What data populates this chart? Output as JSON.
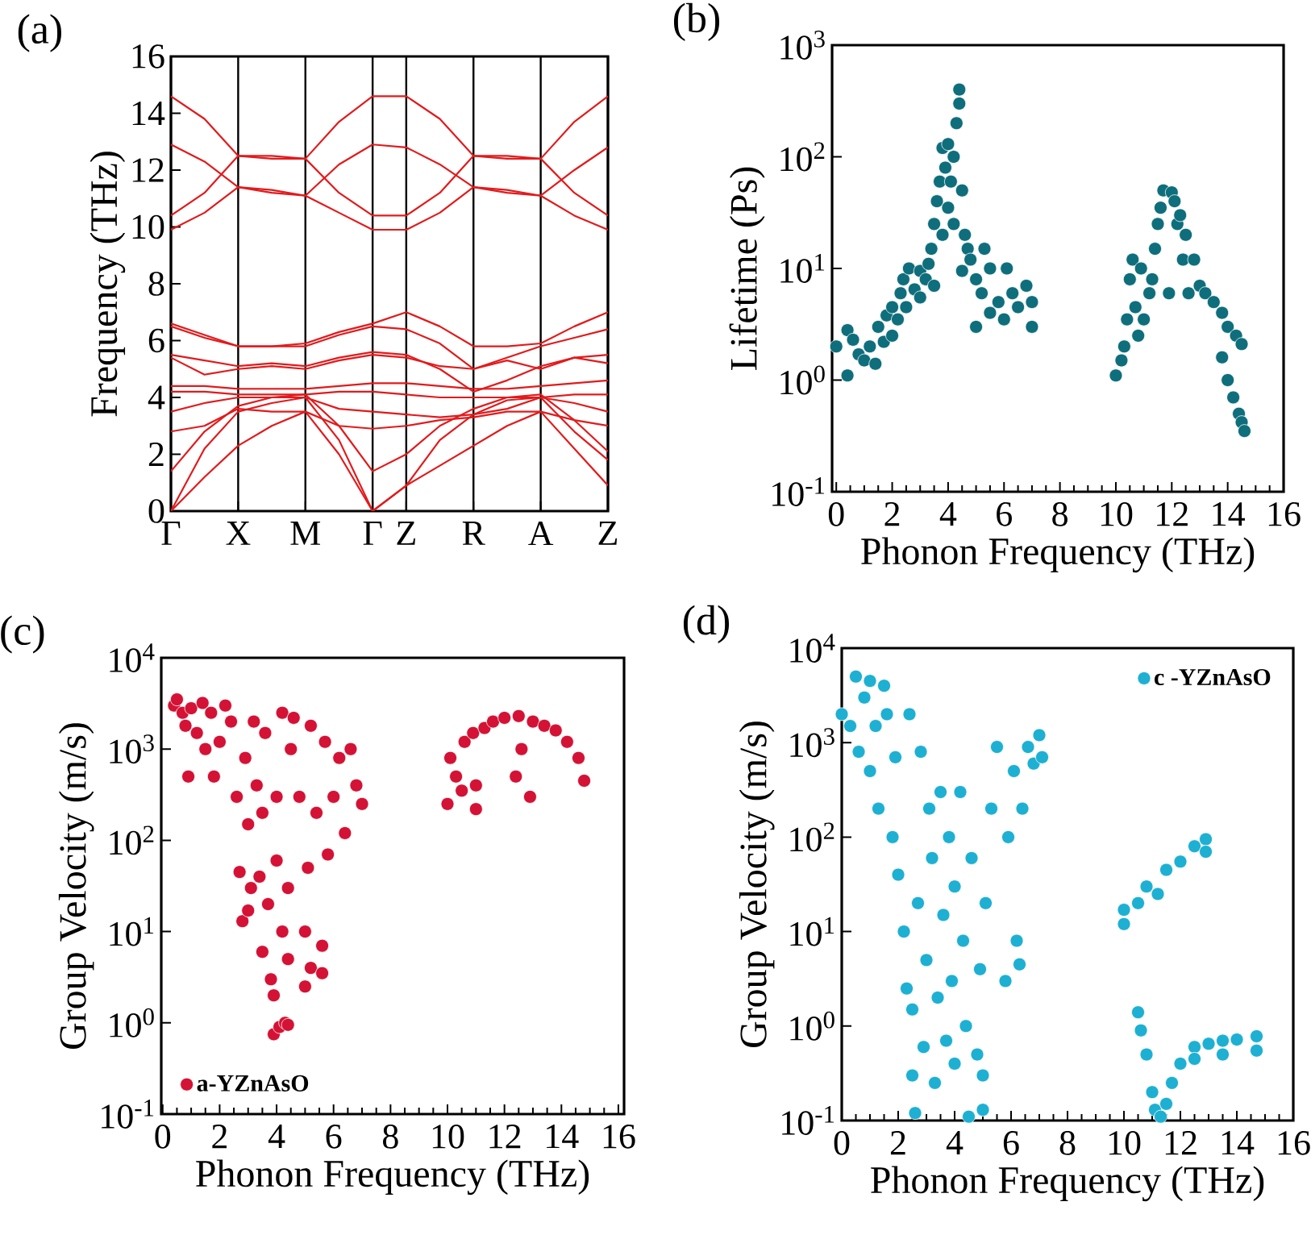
{
  "chart_data": [
    {
      "type": "line",
      "title": "(a)",
      "ylabel": "Frequency (THz)",
      "categories": [
        "Γ",
        null,
        "X",
        null,
        "M",
        null,
        "Γ",
        "Z",
        null,
        "R",
        null,
        "A",
        null,
        "Z"
      ],
      "ylim": [
        0,
        16
      ],
      "yticks": [
        0,
        2,
        4,
        6,
        8,
        10,
        12,
        14,
        16
      ],
      "grid": "x",
      "series": [
        {
          "color": "#e31a1c",
          "values": [
            14.6,
            13.8,
            12.5,
            12.5,
            12.4,
            13.7,
            14.6,
            14.6,
            13.8,
            12.5,
            12.5,
            12.4,
            13.7,
            14.6
          ]
        },
        {
          "color": "#e31a1c",
          "values": [
            12.9,
            12.3,
            11.4,
            11.3,
            11.1,
            12.2,
            12.9,
            12.8,
            12.2,
            11.4,
            11.3,
            11.1,
            12.0,
            12.8
          ]
        },
        {
          "color": "#e31a1c",
          "values": [
            10.4,
            11.2,
            12.5,
            12.4,
            12.4,
            11.2,
            10.4,
            10.4,
            11.2,
            12.5,
            12.4,
            12.4,
            11.2,
            10.4
          ]
        },
        {
          "color": "#e31a1c",
          "values": [
            9.9,
            10.5,
            11.4,
            11.2,
            11.1,
            10.5,
            9.9,
            9.9,
            10.5,
            11.4,
            11.2,
            11.1,
            10.4,
            9.9
          ]
        },
        {
          "color": "#e31a1c",
          "values": [
            0,
            1.2,
            2.3,
            3.0,
            3.5,
            2.0,
            0,
            0.9,
            1.6,
            2.3,
            3.0,
            3.5,
            2.2,
            0.9
          ]
        },
        {
          "color": "#e31a1c",
          "values": [
            0,
            2.2,
            3.5,
            3.8,
            4.0,
            2.5,
            0,
            0.9,
            2.5,
            3.4,
            3.9,
            4.0,
            2.8,
            1.8
          ]
        },
        {
          "color": "#e31a1c",
          "values": [
            1.4,
            2.8,
            3.7,
            4.0,
            4.1,
            3.0,
            1.4,
            2.0,
            3.0,
            3.6,
            4.0,
            4.1,
            3.2,
            2.1
          ]
        },
        {
          "color": "#e31a1c",
          "values": [
            2.8,
            3.0,
            3.6,
            3.5,
            3.5,
            3.0,
            2.9,
            3.0,
            3.2,
            3.3,
            3.5,
            3.5,
            3.2,
            3.0
          ]
        },
        {
          "color": "#e31a1c",
          "values": [
            3.5,
            3.8,
            4.0,
            4.0,
            4.0,
            3.6,
            3.5,
            3.4,
            3.3,
            3.4,
            3.6,
            4.0,
            3.8,
            3.5
          ]
        },
        {
          "color": "#e31a1c",
          "values": [
            4.2,
            4.2,
            4.1,
            4.1,
            4.1,
            4.2,
            4.2,
            4.1,
            4.0,
            4.0,
            4.0,
            4.0,
            4.1,
            4.1
          ]
        },
        {
          "color": "#e31a1c",
          "values": [
            4.4,
            4.4,
            4.3,
            4.3,
            4.3,
            4.4,
            4.5,
            4.5,
            4.4,
            4.3,
            4.3,
            4.4,
            4.5,
            4.6
          ]
        },
        {
          "color": "#e31a1c",
          "values": [
            5.4,
            4.8,
            5.0,
            5.1,
            5.0,
            5.3,
            5.5,
            5.4,
            5.1,
            5.0,
            5.3,
            5.0,
            5.4,
            5.2
          ]
        },
        {
          "color": "#e31a1c",
          "values": [
            5.5,
            5.3,
            5.1,
            5.2,
            5.1,
            5.4,
            5.6,
            5.5,
            5.0,
            4.2,
            4.6,
            5.1,
            5.4,
            5.5
          ]
        },
        {
          "color": "#e31a1c",
          "values": [
            6.5,
            6.1,
            5.8,
            5.8,
            5.8,
            6.2,
            6.5,
            6.4,
            5.9,
            5.0,
            5.4,
            5.8,
            6.1,
            6.4
          ]
        },
        {
          "color": "#e31a1c",
          "values": [
            6.6,
            6.2,
            5.8,
            5.8,
            5.9,
            6.3,
            6.6,
            7.0,
            6.5,
            5.8,
            5.8,
            5.9,
            6.5,
            7.0
          ]
        }
      ]
    },
    {
      "type": "scatter",
      "title": "(b)",
      "xlabel": "Phonon Frequency (THz)",
      "ylabel": "Lifetime (Ps)",
      "log": "y",
      "marker": "circle",
      "color": "#0f6e7c",
      "xlim": [
        -0.15,
        16
      ],
      "ylim": [
        0.1,
        1000
      ],
      "xticks": [
        0,
        2,
        4,
        6,
        8,
        10,
        12,
        14,
        16
      ],
      "yticks": [
        {
          "value": 0.1,
          "label": "10$^{-1}$"
        },
        {
          "value": 1,
          "label": "10$^{0}$"
        },
        {
          "value": 10,
          "label": "10$^{1}$"
        },
        {
          "value": 100,
          "label": "10$^{2}$"
        },
        {
          "value": 1000,
          "label": "10$^{3}$"
        }
      ],
      "x": [
        0,
        0.4,
        0.4,
        0.6,
        0.8,
        1.0,
        1.2,
        1.4,
        1.5,
        1.7,
        1.8,
        2.0,
        2.0,
        2.2,
        2.3,
        2.4,
        2.5,
        2.6,
        2.8,
        3.0,
        3.0,
        3.2,
        3.3,
        3.4,
        3.5,
        3.5,
        3.6,
        3.7,
        3.8,
        3.8,
        3.9,
        4.0,
        4.0,
        4.1,
        4.2,
        4.2,
        4.3,
        4.4,
        4.4,
        4.5,
        4.5,
        4.6,
        4.7,
        4.8,
        5.0,
        5.0,
        5.2,
        5.3,
        5.5,
        5.5,
        5.8,
        6.0,
        6.1,
        6.3,
        6.5,
        6.8,
        7.0,
        7.0,
        10.0,
        10.2,
        10.3,
        10.4,
        10.5,
        10.6,
        10.7,
        10.8,
        10.9,
        11.0,
        11.2,
        11.3,
        11.4,
        11.5,
        11.6,
        11.7,
        11.9,
        12.0,
        12.1,
        12.2,
        12.3,
        12.4,
        12.5,
        12.6,
        12.8,
        13.0,
        13.2,
        13.5,
        13.8,
        14.0,
        14.3,
        14.5,
        13.8,
        14.0,
        14.2,
        14.4,
        14.5,
        14.6
      ],
      "values": [
        2,
        1.1,
        2.8,
        2.3,
        1.7,
        1.5,
        2.0,
        1.4,
        3.0,
        2.2,
        3.8,
        2.5,
        4.5,
        3.5,
        6.0,
        8.0,
        4.5,
        10,
        6.5,
        5.5,
        9.5,
        8.0,
        11,
        15,
        7.0,
        25,
        40,
        60,
        120,
        20,
        80,
        130,
        35,
        60,
        100,
        25,
        200,
        400,
        300,
        50,
        9.5,
        20,
        15,
        12,
        8,
        3.0,
        6,
        15,
        4,
        10,
        5,
        3.5,
        10,
        6,
        4.5,
        7,
        3,
        5,
        1.1,
        1.5,
        2.0,
        3.5,
        8,
        12,
        4.5,
        2.5,
        10,
        3.5,
        6,
        8,
        15,
        25,
        35,
        50,
        6,
        48,
        40,
        25,
        30,
        12,
        20,
        6,
        12,
        7,
        6,
        5,
        4,
        3,
        2.5,
        2.1,
        1.6,
        1.0,
        0.7,
        0.5,
        0.42,
        0.35
      ]
    },
    {
      "type": "scatter",
      "title": "(c)",
      "xlabel": "Phonon Frequency (THz)",
      "ylabel": "Group Velocity (m/s)",
      "log": "y",
      "marker": "circle",
      "legend": "bottom left",
      "xlim": [
        -0.05,
        16.2
      ],
      "ylim": [
        0.1,
        10000
      ],
      "xticks": [
        0,
        2,
        4,
        6,
        8,
        10,
        12,
        14,
        16
      ],
      "yticks": [
        {
          "value": 0.1,
          "label": "10$^{-1}$"
        },
        {
          "value": 1,
          "label": "10$^{0}$"
        },
        {
          "value": 10,
          "label": "10$^{1}$"
        },
        {
          "value": 100,
          "label": "10$^{2}$"
        },
        {
          "value": 1000,
          "label": "10$^{3}$"
        },
        {
          "value": 10000,
          "label": "10$^{4}$"
        }
      ],
      "x": [
        0.4,
        0.5,
        0.7,
        0.8,
        0.9,
        1.0,
        1.2,
        1.4,
        1.5,
        1.7,
        1.8,
        2.0,
        2.2,
        2.4,
        2.6,
        2.7,
        2.8,
        2.9,
        3.0,
        3.0,
        3.1,
        3.2,
        3.3,
        3.4,
        3.5,
        3.5,
        3.6,
        3.7,
        3.8,
        3.9,
        3.9,
        4.0,
        4.0,
        4.1,
        4.2,
        4.2,
        4.3,
        4.4,
        4.4,
        4.4,
        4.5,
        4.6,
        4.8,
        5.0,
        5.0,
        5.1,
        5.2,
        5.2,
        5.4,
        5.6,
        5.6,
        5.7,
        5.8,
        6.0,
        6.2,
        6.4,
        6.6,
        6.8,
        7.0,
        10.0,
        10.1,
        10.3,
        10.5,
        10.6,
        10.9,
        11.0,
        11.0,
        11.3,
        11.6,
        12.0,
        12.4,
        12.5,
        12.6,
        12.9,
        13.0,
        13.4,
        13.8,
        14.2,
        14.6,
        14.8
      ],
      "series": [
        {
          "name": "a-YZnAsO",
          "color": "#d41235",
          "values": [
            3000,
            3500,
            2500,
            1800,
            500,
            2800,
            1500,
            3200,
            1000,
            2500,
            500,
            1200,
            3000,
            2000,
            300,
            45,
            13,
            800,
            150,
            17,
            30,
            2000,
            400,
            40,
            6,
            200,
            1500,
            20,
            3,
            0.75,
            2,
            60,
            300,
            0.9,
            10,
            2500,
            1,
            0.95,
            5,
            30,
            1000,
            2200,
            300,
            10,
            2.5,
            50,
            4,
            1800,
            200,
            7,
            3.5,
            1200,
            70,
            300,
            800,
            120,
            1000,
            400,
            250,
            250,
            800,
            500,
            350,
            1200,
            1500,
            220,
            400,
            1700,
            2000,
            2200,
            500,
            2300,
            1000,
            300,
            2000,
            1800,
            1600,
            1200,
            800,
            450
          ]
        }
      ]
    },
    {
      "type": "scatter",
      "title": "(d)",
      "xlabel": "Phonon Frequency (THz)",
      "ylabel": "Group Velocity (m/s)",
      "log": "y",
      "marker": "circle",
      "legend": "top right",
      "xlim": [
        0,
        16
      ],
      "ylim": [
        0.1,
        10000
      ],
      "xticks": [
        0,
        2,
        4,
        6,
        8,
        10,
        12,
        14,
        16
      ],
      "yticks": [
        {
          "value": 0.1,
          "label": "10$^{-1}$"
        },
        {
          "value": 1,
          "label": "10$^{0}$"
        },
        {
          "value": 10,
          "label": "10$^{1}$"
        },
        {
          "value": 100,
          "label": "10$^{2}$"
        },
        {
          "value": 1000,
          "label": "10$^{3}$"
        },
        {
          "value": 10000,
          "label": "10$^{4}$"
        }
      ],
      "x": [
        0,
        0.3,
        0.5,
        0.6,
        0.8,
        1.0,
        1.0,
        1.2,
        1.3,
        1.5,
        1.6,
        1.8,
        1.9,
        2.0,
        2.2,
        2.3,
        2.4,
        2.5,
        2.5,
        2.6,
        2.7,
        2.8,
        2.9,
        3.0,
        3.1,
        3.2,
        3.3,
        3.4,
        3.5,
        3.6,
        3.7,
        3.8,
        3.9,
        4.0,
        4.0,
        4.2,
        4.3,
        4.4,
        4.5,
        4.6,
        4.8,
        4.9,
        5.0,
        5.0,
        5.1,
        5.3,
        5.5,
        5.8,
        5.9,
        6.1,
        6.2,
        6.3,
        6.4,
        6.6,
        6.8,
        7.0,
        7.1,
        10.0,
        10.0,
        10.5,
        10.8,
        11.2,
        11.5,
        12.0,
        12.5,
        12.9,
        12.9,
        10.5,
        10.6,
        10.8,
        11.0,
        11.1,
        11.3,
        11.5,
        11.7,
        12.0,
        12.5,
        12.5,
        13.0,
        13.5,
        14.0,
        14.7,
        14.7,
        13.5
      ],
      "series": [
        {
          "name": "c -YZnAsO",
          "color": "#1eb0d2",
          "values": [
            2000,
            1500,
            5000,
            800,
            3000,
            4500,
            500,
            1500,
            200,
            4000,
            2000,
            100,
            700,
            40,
            10,
            2.5,
            2000,
            0.3,
            1.5,
            0.12,
            20,
            800,
            0.6,
            5,
            200,
            60,
            0.25,
            2,
            300,
            15,
            0.7,
            100,
            3,
            30,
            0.4,
            300,
            8,
            1,
            0.11,
            60,
            0.5,
            4,
            0.3,
            0.13,
            20,
            200,
            900,
            3,
            100,
            500,
            8,
            4.5,
            200,
            900,
            600,
            1200,
            700,
            12,
            17,
            20,
            30,
            25,
            45,
            55,
            80,
            95,
            70,
            1.4,
            0.9,
            0.5,
            0.2,
            0.13,
            0.11,
            0.15,
            0.25,
            0.4,
            0.6,
            0.45,
            0.65,
            0.7,
            0.72,
            0.78,
            0.55,
            0.5
          ]
        }
      ]
    }
  ]
}
